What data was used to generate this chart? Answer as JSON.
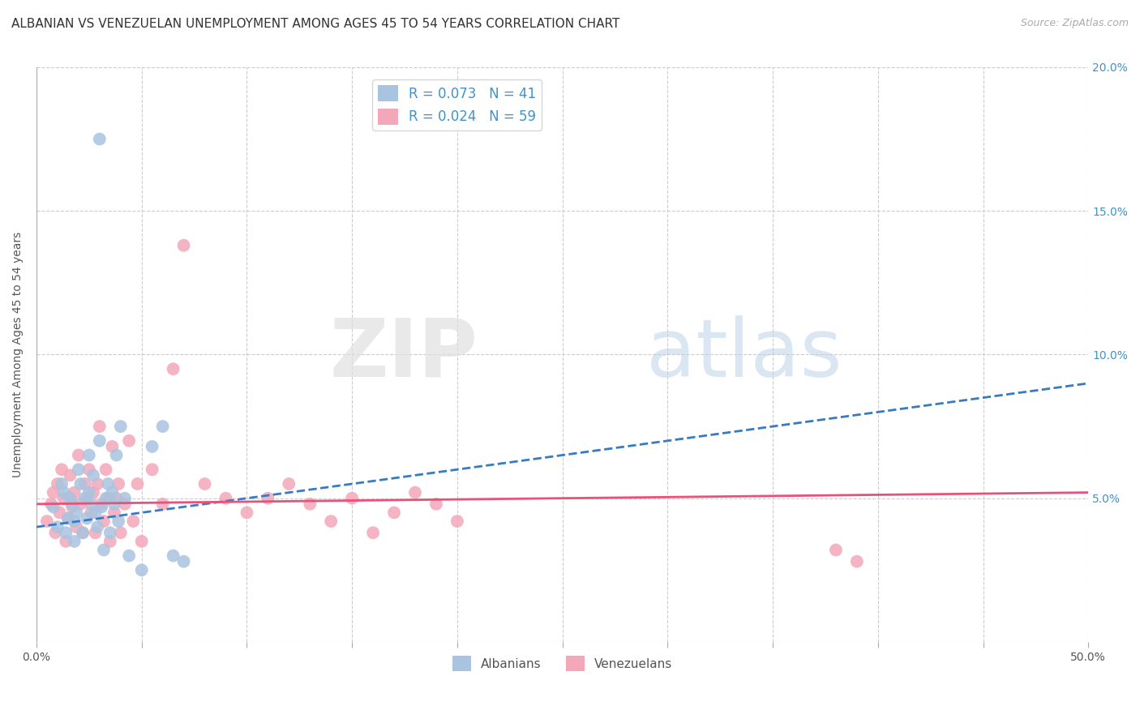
{
  "title": "ALBANIAN VS VENEZUELAN UNEMPLOYMENT AMONG AGES 45 TO 54 YEARS CORRELATION CHART",
  "source": "Source: ZipAtlas.com",
  "ylabel": "Unemployment Among Ages 45 to 54 years",
  "xlim": [
    0,
    0.5
  ],
  "ylim": [
    0,
    0.2
  ],
  "albanian_color": "#a8c4e0",
  "venezuelan_color": "#f4a7b9",
  "albanian_line_color": "#3a7abf",
  "venezuelan_line_color": "#e8527a",
  "R_albanian": 0.073,
  "N_albanian": 41,
  "R_venezuelan": 0.024,
  "N_venezuelan": 59,
  "background_color": "#ffffff",
  "grid_color": "#cccccc",
  "alb_trend_x0": 0.0,
  "alb_trend_y0": 0.04,
  "alb_trend_x1": 0.5,
  "alb_trend_y1": 0.09,
  "ven_trend_x0": 0.0,
  "ven_trend_y0": 0.048,
  "ven_trend_x1": 0.5,
  "ven_trend_y1": 0.052,
  "albanian_x": [
    0.008,
    0.01,
    0.012,
    0.013,
    0.014,
    0.015,
    0.016,
    0.017,
    0.018,
    0.019,
    0.02,
    0.021,
    0.022,
    0.023,
    0.024,
    0.025,
    0.026,
    0.027,
    0.028,
    0.029,
    0.03,
    0.031,
    0.032,
    0.033,
    0.034,
    0.035,
    0.036,
    0.037,
    0.038,
    0.039,
    0.04,
    0.042,
    0.044,
    0.05,
    0.055,
    0.06,
    0.065,
    0.07,
    0.03,
    0.025,
    0.018
  ],
  "albanian_y": [
    0.047,
    0.04,
    0.055,
    0.052,
    0.038,
    0.043,
    0.05,
    0.048,
    0.042,
    0.045,
    0.06,
    0.055,
    0.038,
    0.05,
    0.043,
    0.052,
    0.048,
    0.058,
    0.045,
    0.04,
    0.07,
    0.047,
    0.032,
    0.05,
    0.055,
    0.038,
    0.052,
    0.048,
    0.065,
    0.042,
    0.075,
    0.05,
    0.03,
    0.025,
    0.068,
    0.075,
    0.03,
    0.028,
    0.175,
    0.065,
    0.035
  ],
  "venezuelan_x": [
    0.005,
    0.007,
    0.008,
    0.009,
    0.01,
    0.011,
    0.012,
    0.013,
    0.014,
    0.015,
    0.016,
    0.017,
    0.018,
    0.019,
    0.02,
    0.021,
    0.022,
    0.023,
    0.024,
    0.025,
    0.026,
    0.027,
    0.028,
    0.029,
    0.03,
    0.031,
    0.032,
    0.033,
    0.034,
    0.035,
    0.036,
    0.037,
    0.038,
    0.039,
    0.04,
    0.042,
    0.044,
    0.046,
    0.048,
    0.05,
    0.055,
    0.06,
    0.065,
    0.07,
    0.08,
    0.09,
    0.1,
    0.11,
    0.12,
    0.13,
    0.14,
    0.15,
    0.16,
    0.17,
    0.18,
    0.19,
    0.2,
    0.38,
    0.39
  ],
  "venezuelan_y": [
    0.042,
    0.048,
    0.052,
    0.038,
    0.055,
    0.045,
    0.06,
    0.05,
    0.035,
    0.043,
    0.058,
    0.047,
    0.052,
    0.04,
    0.065,
    0.048,
    0.038,
    0.055,
    0.05,
    0.06,
    0.045,
    0.052,
    0.038,
    0.055,
    0.075,
    0.048,
    0.042,
    0.06,
    0.05,
    0.035,
    0.068,
    0.045,
    0.05,
    0.055,
    0.038,
    0.048,
    0.07,
    0.042,
    0.055,
    0.035,
    0.06,
    0.048,
    0.095,
    0.138,
    0.055,
    0.05,
    0.045,
    0.05,
    0.055,
    0.048,
    0.042,
    0.05,
    0.038,
    0.045,
    0.052,
    0.048,
    0.042,
    0.032,
    0.028
  ],
  "title_fontsize": 11,
  "axis_label_fontsize": 10,
  "tick_fontsize": 10
}
